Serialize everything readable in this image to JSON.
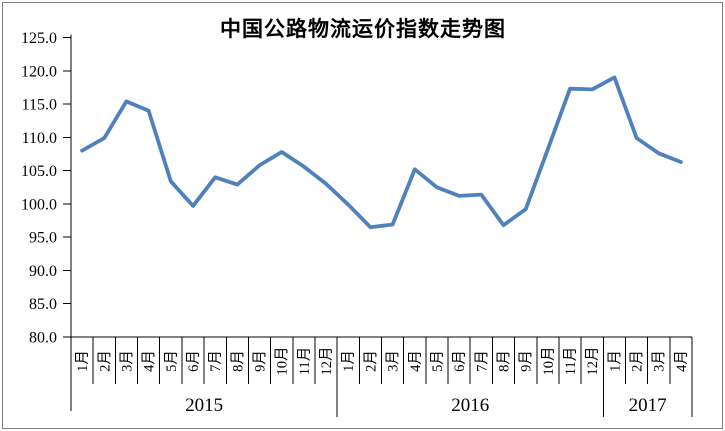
{
  "chart_data": {
    "type": "line",
    "title": "中国公路物流运价指数走势图",
    "categories": [
      "1月",
      "2月",
      "3月",
      "4月",
      "5月",
      "6月",
      "7月",
      "8月",
      "9月",
      "10月",
      "11月",
      "12月",
      "1月",
      "2月",
      "3月",
      "4月",
      "5月",
      "6月",
      "7月",
      "8月",
      "9月",
      "10月",
      "11月",
      "12月",
      "1月",
      "2月",
      "3月",
      "4月"
    ],
    "category_groups": [
      {
        "label": "2015",
        "span": 12
      },
      {
        "label": "2016",
        "span": 12
      },
      {
        "label": "2017",
        "span": 4
      }
    ],
    "values": [
      108.0,
      109.9,
      115.4,
      114.0,
      103.4,
      99.7,
      104.0,
      102.9,
      105.8,
      107.8,
      105.6,
      103.0,
      99.9,
      96.5,
      96.9,
      105.2,
      102.5,
      101.2,
      101.4,
      96.8,
      99.2,
      108.2,
      117.3,
      117.2,
      119.0,
      109.9,
      107.6,
      106.3
    ],
    "xlabel": "",
    "ylabel": "",
    "ylim": [
      80,
      125
    ],
    "ytick_step": 5,
    "y_tick_labels": [
      "125.0",
      "120.0",
      "115.0",
      "110.0",
      "105.0",
      "100.0",
      "95.0",
      "90.0",
      "85.0",
      "80.0"
    ],
    "grid": false,
    "legend": "none",
    "line_color": "#4F81BD",
    "axis_color": "#000000",
    "frame_border_color": "#7f7f7f"
  }
}
